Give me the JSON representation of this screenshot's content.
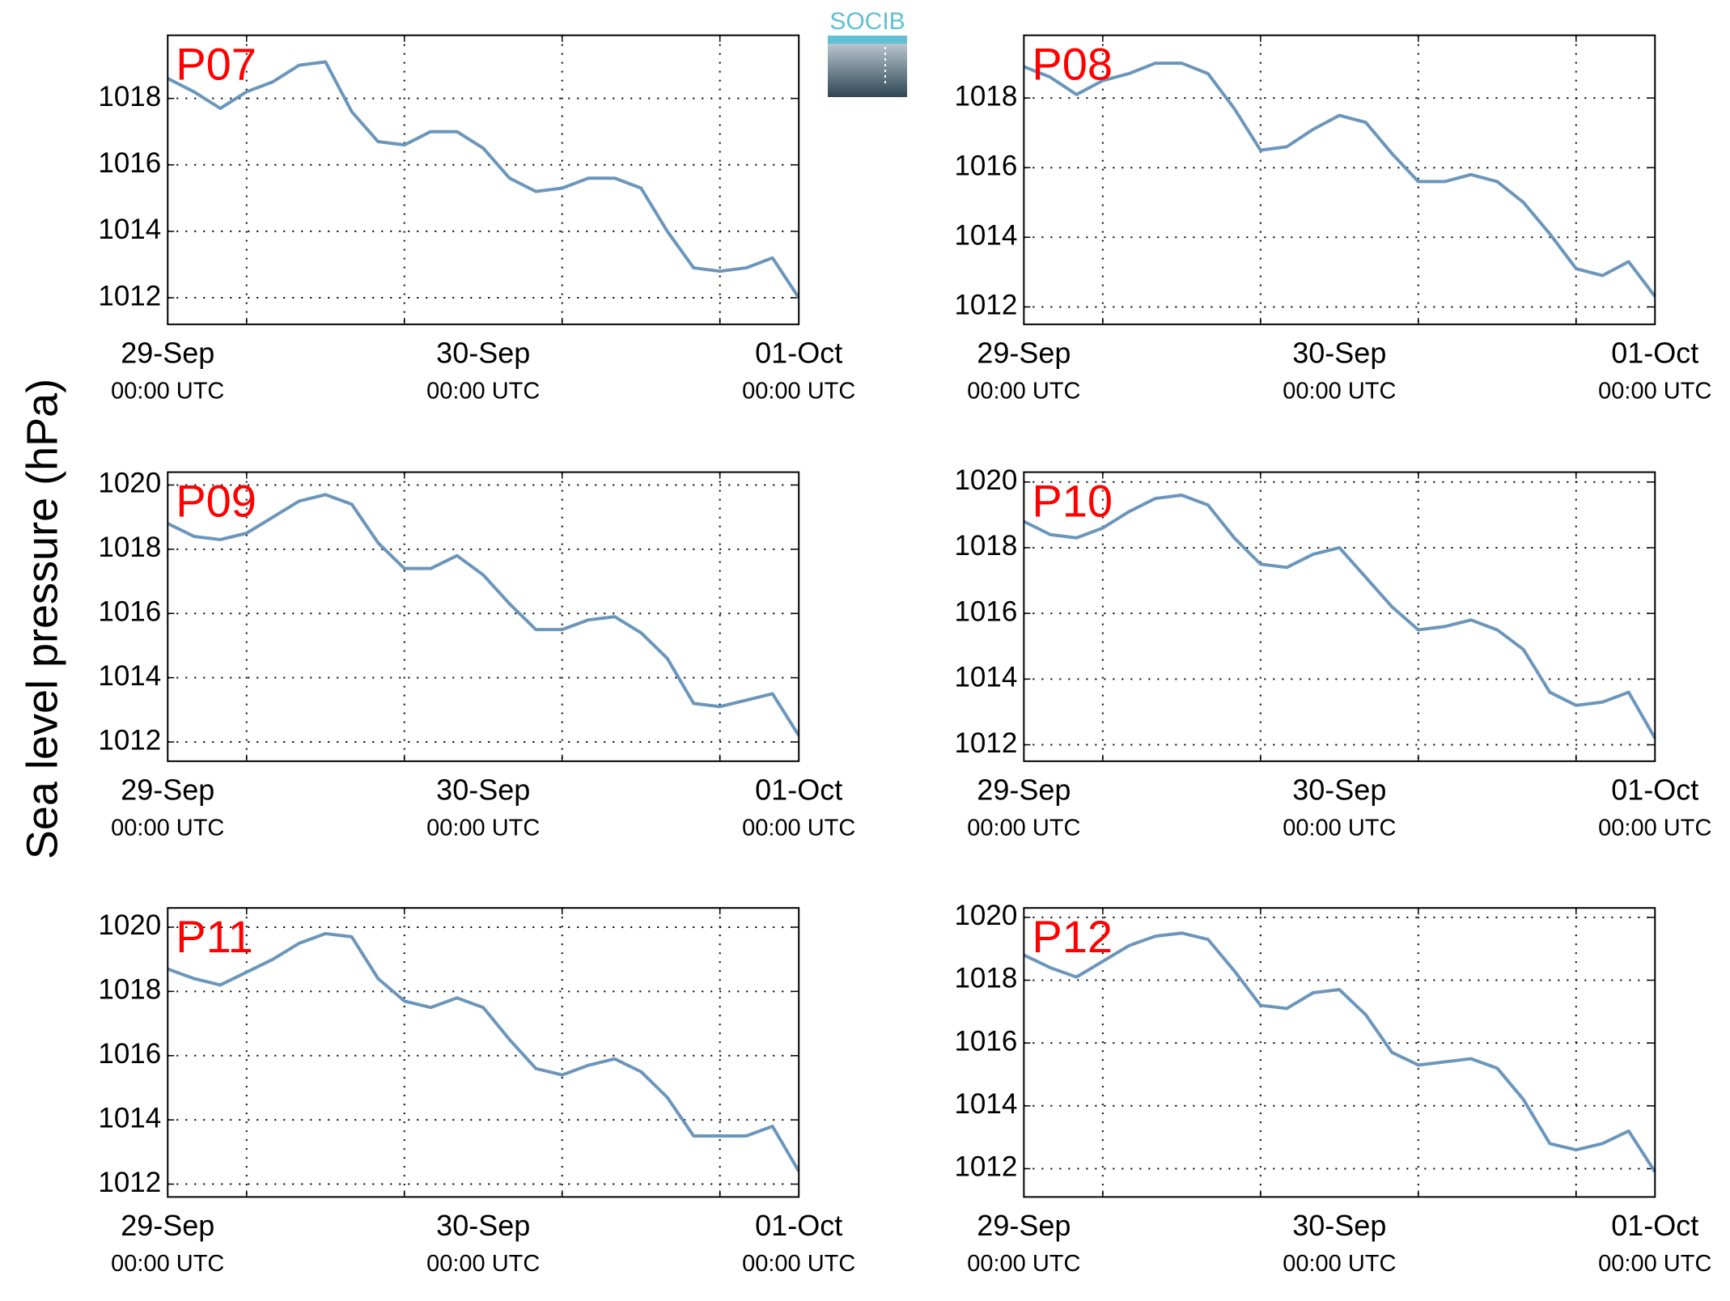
{
  "ylabel": "Sea level pressure (hPa)",
  "logo": "SOCIB",
  "chart_data": [
    {
      "type": "line",
      "title": "P07",
      "x": [
        0,
        2,
        4,
        6,
        8,
        10,
        12,
        14,
        16,
        18,
        20,
        22,
        24,
        26,
        28,
        30,
        32,
        34,
        36,
        38,
        40,
        42,
        44,
        46,
        48
      ],
      "series": [
        {
          "name": "P07",
          "color": "#6b96bc",
          "values": [
            1018.6,
            1018.2,
            1017.7,
            1018.2,
            1018.5,
            1019.0,
            1019.1,
            1017.6,
            1016.7,
            1016.6,
            1017.0,
            1017.0,
            1016.5,
            1015.6,
            1015.2,
            1015.3,
            1015.6,
            1015.6,
            1015.3,
            1014.0,
            1012.9,
            1012.8,
            1012.9,
            1013.2,
            1012.0
          ]
        }
      ],
      "xlim": [
        0,
        48
      ],
      "xticks": [
        {
          "value": 0,
          "label": "29-Sep"
        },
        {
          "value": 24,
          "label": "30-Sep"
        },
        {
          "value": 48,
          "label": "01-Oct"
        }
      ],
      "xtick_sublabel": "00:00 UTC",
      "xgrid": [
        6,
        18,
        30,
        42
      ],
      "ylim": [
        1011.2,
        1019.9
      ],
      "yticks": [
        1012,
        1014,
        1016,
        1018
      ],
      "grid": true
    },
    {
      "type": "line",
      "title": "P08",
      "x": [
        0,
        2,
        4,
        6,
        8,
        10,
        12,
        14,
        16,
        18,
        20,
        22,
        24,
        26,
        28,
        30,
        32,
        34,
        36,
        38,
        40,
        42,
        44,
        46,
        48
      ],
      "series": [
        {
          "name": "P08",
          "color": "#6b96bc",
          "values": [
            1018.9,
            1018.6,
            1018.1,
            1018.5,
            1018.7,
            1019.0,
            1019.0,
            1018.7,
            1017.7,
            1016.5,
            1016.6,
            1017.1,
            1017.5,
            1017.3,
            1016.4,
            1015.6,
            1015.6,
            1015.8,
            1015.6,
            1015.0,
            1014.1,
            1013.1,
            1012.9,
            1013.3,
            1012.3
          ]
        }
      ],
      "xlim": [
        0,
        48
      ],
      "xticks": [
        {
          "value": 0,
          "label": "29-Sep"
        },
        {
          "value": 24,
          "label": "30-Sep"
        },
        {
          "value": 48,
          "label": "01-Oct"
        }
      ],
      "xtick_sublabel": "00:00 UTC",
      "xgrid": [
        6,
        18,
        30,
        42
      ],
      "ylim": [
        1011.5,
        1019.8
      ],
      "yticks": [
        1012,
        1014,
        1016,
        1018
      ],
      "grid": true
    },
    {
      "type": "line",
      "title": "P09",
      "x": [
        0,
        2,
        4,
        6,
        8,
        10,
        12,
        14,
        16,
        18,
        20,
        22,
        24,
        26,
        28,
        30,
        32,
        34,
        36,
        38,
        40,
        42,
        44,
        46,
        48
      ],
      "series": [
        {
          "name": "P09",
          "color": "#6b96bc",
          "values": [
            1018.8,
            1018.4,
            1018.3,
            1018.5,
            1019.0,
            1019.5,
            1019.7,
            1019.4,
            1018.2,
            1017.4,
            1017.4,
            1017.8,
            1017.2,
            1016.3,
            1015.5,
            1015.5,
            1015.8,
            1015.9,
            1015.4,
            1014.6,
            1013.2,
            1013.1,
            1013.3,
            1013.5,
            1012.2
          ]
        }
      ],
      "xlim": [
        0,
        48
      ],
      "xticks": [
        {
          "value": 0,
          "label": "29-Sep"
        },
        {
          "value": 24,
          "label": "30-Sep"
        },
        {
          "value": 48,
          "label": "01-Oct"
        }
      ],
      "xtick_sublabel": "00:00 UTC",
      "xgrid": [
        6,
        18,
        30,
        42
      ],
      "ylim": [
        1011.4,
        1020.4
      ],
      "yticks": [
        1012,
        1014,
        1016,
        1018,
        1020
      ],
      "grid": true
    },
    {
      "type": "line",
      "title": "P10",
      "x": [
        0,
        2,
        4,
        6,
        8,
        10,
        12,
        14,
        16,
        18,
        20,
        22,
        24,
        26,
        28,
        30,
        32,
        34,
        36,
        38,
        40,
        42,
        44,
        46,
        48
      ],
      "series": [
        {
          "name": "P10",
          "color": "#6b96bc",
          "values": [
            1018.8,
            1018.4,
            1018.3,
            1018.6,
            1019.1,
            1019.5,
            1019.6,
            1019.3,
            1018.3,
            1017.5,
            1017.4,
            1017.8,
            1018.0,
            1017.1,
            1016.2,
            1015.5,
            1015.6,
            1015.8,
            1015.5,
            1014.9,
            1013.6,
            1013.2,
            1013.3,
            1013.6,
            1012.2
          ]
        }
      ],
      "xlim": [
        0,
        48
      ],
      "xticks": [
        {
          "value": 0,
          "label": "29-Sep"
        },
        {
          "value": 24,
          "label": "30-Sep"
        },
        {
          "value": 48,
          "label": "01-Oct"
        }
      ],
      "xtick_sublabel": "00:00 UTC",
      "xgrid": [
        6,
        18,
        30,
        42
      ],
      "ylim": [
        1011.5,
        1020.3
      ],
      "yticks": [
        1012,
        1014,
        1016,
        1018,
        1020
      ],
      "grid": true
    },
    {
      "type": "line",
      "title": "P11",
      "x": [
        0,
        2,
        4,
        6,
        8,
        10,
        12,
        14,
        16,
        18,
        20,
        22,
        24,
        26,
        28,
        30,
        32,
        34,
        36,
        38,
        40,
        42,
        44,
        46,
        48
      ],
      "series": [
        {
          "name": "P11",
          "color": "#6b96bc",
          "values": [
            1018.7,
            1018.4,
            1018.2,
            1018.6,
            1019.0,
            1019.5,
            1019.8,
            1019.7,
            1018.4,
            1017.7,
            1017.5,
            1017.8,
            1017.5,
            1016.5,
            1015.6,
            1015.4,
            1015.7,
            1015.9,
            1015.5,
            1014.7,
            1013.5,
            1013.5,
            1013.5,
            1013.8,
            1012.4
          ]
        }
      ],
      "xlim": [
        0,
        48
      ],
      "xticks": [
        {
          "value": 0,
          "label": "29-Sep"
        },
        {
          "value": 24,
          "label": "30-Sep"
        },
        {
          "value": 48,
          "label": "01-Oct"
        }
      ],
      "xtick_sublabel": "00:00 UTC",
      "xgrid": [
        6,
        18,
        30,
        42
      ],
      "ylim": [
        1011.6,
        1020.6
      ],
      "yticks": [
        1012,
        1014,
        1016,
        1018,
        1020
      ],
      "grid": true
    },
    {
      "type": "line",
      "title": "P12",
      "x": [
        0,
        2,
        4,
        6,
        8,
        10,
        12,
        14,
        16,
        18,
        20,
        22,
        24,
        26,
        28,
        30,
        32,
        34,
        36,
        38,
        40,
        42,
        44,
        46,
        48
      ],
      "series": [
        {
          "name": "P12",
          "color": "#6b96bc",
          "values": [
            1018.8,
            1018.4,
            1018.1,
            1018.6,
            1019.1,
            1019.4,
            1019.5,
            1019.3,
            1018.3,
            1017.2,
            1017.1,
            1017.6,
            1017.7,
            1016.9,
            1015.7,
            1015.3,
            1015.4,
            1015.5,
            1015.2,
            1014.2,
            1012.8,
            1012.6,
            1012.8,
            1013.2,
            1011.9
          ]
        }
      ],
      "xlim": [
        0,
        48
      ],
      "xticks": [
        {
          "value": 0,
          "label": "29-Sep"
        },
        {
          "value": 24,
          "label": "30-Sep"
        },
        {
          "value": 48,
          "label": "01-Oct"
        }
      ],
      "xtick_sublabel": "00:00 UTC",
      "xgrid": [
        6,
        18,
        30,
        42
      ],
      "ylim": [
        1011.1,
        1020.3
      ],
      "yticks": [
        1012,
        1014,
        1016,
        1018,
        1020
      ],
      "grid": true
    }
  ]
}
